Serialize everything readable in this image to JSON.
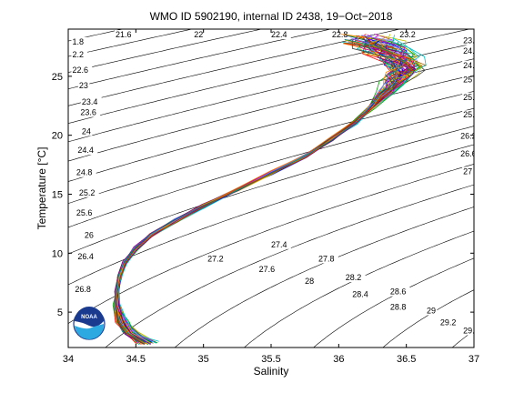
{
  "chart_data": {
    "type": "line",
    "title": "WMO ID 5902190, internal ID 2438, 19−Oct−2018",
    "xlabel": "Salinity",
    "ylabel": "Temperature [°C]",
    "xlim": [
      34,
      37
    ],
    "ylim": [
      2,
      29
    ],
    "xticks": [
      34,
      34.5,
      35,
      35.5,
      36,
      36.5,
      37
    ],
    "xtick_labels": [
      "34",
      "34.5",
      "35",
      "35.5",
      "36",
      "36.5",
      "37"
    ],
    "yticks": [
      5,
      10,
      15,
      20,
      25
    ],
    "ytick_labels": [
      "5",
      "10",
      "15",
      "20",
      "25"
    ],
    "grid": false,
    "legend": "none",
    "background": "#ffffff",
    "density_contours": {
      "levels": [
        21.6,
        22.0,
        22.4,
        22.8,
        23.2,
        23.6,
        24.0,
        24.4,
        24.8,
        25.2,
        25.6,
        26.0,
        26.4,
        26.8,
        27.2,
        27.6,
        28.0,
        28.4,
        28.8,
        29.2,
        29.6,
        30.0,
        30.4
      ],
      "color": "#000000",
      "labels": [
        {
          "text": "21.6",
          "s": 34.35,
          "t": 28.3
        },
        {
          "text": "22",
          "s": 34.93,
          "t": 28.3
        },
        {
          "text": "22.4",
          "s": 35.5,
          "t": 28.3
        },
        {
          "text": "22.8",
          "s": 35.95,
          "t": 28.3
        },
        {
          "text": "23.2",
          "s": 36.45,
          "t": 28.3
        },
        {
          "text": "1.8",
          "s": 34.03,
          "t": 27.7
        },
        {
          "text": "2.2",
          "s": 34.03,
          "t": 26.6
        },
        {
          "text": "22.6",
          "s": 34.03,
          "t": 25.3
        },
        {
          "text": "23",
          "s": 34.08,
          "t": 24.0
        },
        {
          "text": "23.4",
          "s": 34.1,
          "t": 22.6
        },
        {
          "text": "23.6",
          "s": 34.09,
          "t": 21.7
        },
        {
          "text": "24",
          "s": 34.1,
          "t": 20.1
        },
        {
          "text": "24.4",
          "s": 34.07,
          "t": 18.5
        },
        {
          "text": "24.8",
          "s": 34.06,
          "t": 16.6
        },
        {
          "text": "25.2",
          "s": 34.08,
          "t": 14.9
        },
        {
          "text": "25.6",
          "s": 34.06,
          "t": 13.2
        },
        {
          "text": "26",
          "s": 34.12,
          "t": 11.3
        },
        {
          "text": "26.4",
          "s": 34.07,
          "t": 9.5
        },
        {
          "text": "26.8",
          "s": 34.05,
          "t": 6.7
        },
        {
          "text": "27.2",
          "s": 35.03,
          "t": 9.3
        },
        {
          "text": "27.4",
          "s": 35.5,
          "t": 10.5
        },
        {
          "text": "27.6",
          "s": 35.41,
          "t": 8.4
        },
        {
          "text": "27.8",
          "s": 35.85,
          "t": 9.3
        },
        {
          "text": "28",
          "s": 35.75,
          "t": 7.4
        },
        {
          "text": "28.2",
          "s": 36.05,
          "t": 7.7
        },
        {
          "text": "28.4",
          "s": 36.1,
          "t": 6.3
        },
        {
          "text": "28.6",
          "s": 36.38,
          "t": 6.5
        },
        {
          "text": "28.8",
          "s": 36.38,
          "t": 5.2
        },
        {
          "text": "29",
          "s": 36.65,
          "t": 4.9
        },
        {
          "text": "29.2",
          "s": 36.75,
          "t": 3.9
        },
        {
          "text": "29.4",
          "s": 36.92,
          "t": 3.2
        },
        {
          "text": "23.6",
          "s": 36.92,
          "t": 27.8
        },
        {
          "text": "24.2",
          "s": 36.92,
          "t": 26.9
        },
        {
          "text": "24.6",
          "s": 36.92,
          "t": 25.7
        },
        {
          "text": "25",
          "s": 36.92,
          "t": 24.5
        },
        {
          "text": "25.4",
          "s": 36.92,
          "t": 23.0
        },
        {
          "text": "25.8",
          "s": 36.92,
          "t": 21.5
        },
        {
          "text": "26.2",
          "s": 36.9,
          "t": 19.7
        },
        {
          "text": "26.6",
          "s": 36.9,
          "t": 18.2
        },
        {
          "text": "27",
          "s": 36.92,
          "t": 16.7
        }
      ]
    },
    "profile_mean": {
      "s": [
        34.58,
        34.47,
        34.4,
        34.36,
        34.36,
        34.38,
        34.42,
        34.5,
        34.62,
        34.8,
        35.0,
        35.25,
        35.5,
        35.75,
        35.95,
        36.12,
        36.25,
        36.35,
        36.42,
        36.47,
        36.5,
        36.45,
        36.36,
        36.28,
        36.22
      ],
      "t": [
        2.4,
        3.2,
        4.2,
        5.5,
        6.8,
        8.0,
        9.2,
        10.4,
        11.6,
        12.8,
        14.0,
        15.4,
        16.8,
        18.2,
        19.7,
        21.1,
        22.4,
        23.6,
        24.5,
        25.2,
        25.8,
        26.5,
        27.1,
        27.7,
        28.2
      ]
    },
    "series_count": 60,
    "series_colors": [
      "#0000ff",
      "#00a000",
      "#ff0000",
      "#00c0c0",
      "#c000c0",
      "#c0c000",
      "#404040",
      "#8080ff",
      "#ff8000",
      "#800080",
      "#008080",
      "#a05000"
    ]
  },
  "logo": {
    "text": "NOAA"
  }
}
